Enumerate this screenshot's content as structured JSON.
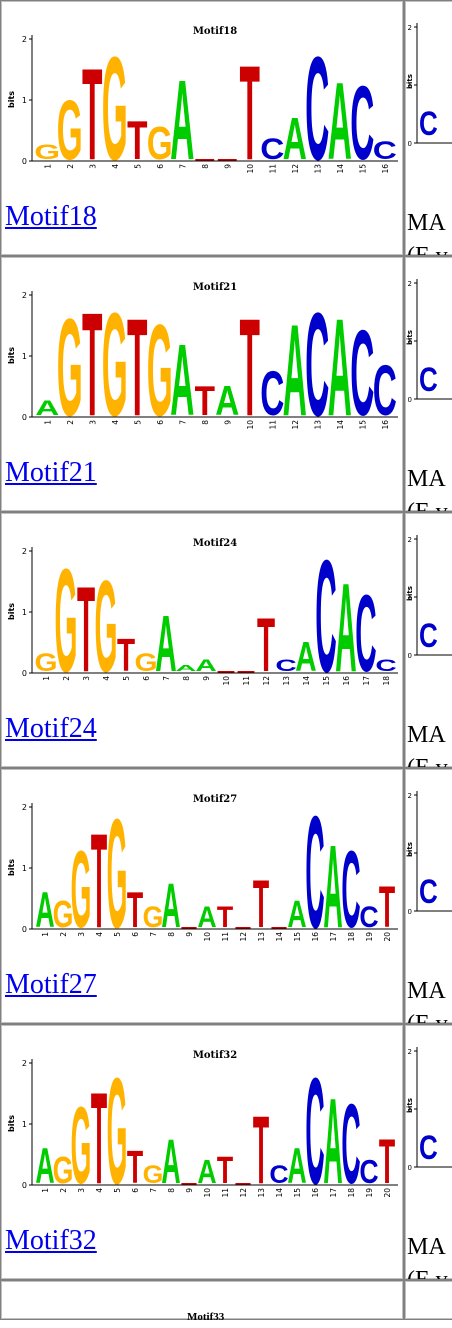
{
  "rows": [
    {
      "name": "Motif18",
      "link": "Motif18",
      "match_line1": "MA",
      "match_line2": "(E v",
      "positions": [
        "1",
        "2",
        "3",
        "4",
        "5",
        "6",
        "7",
        "8",
        "9",
        "10",
        "11",
        "12",
        "13",
        "14",
        "15",
        "16"
      ],
      "top": [
        "G",
        "G",
        "T",
        "G",
        "T",
        "G",
        "A",
        "_",
        "_",
        "T",
        "C",
        "A",
        "C",
        "A",
        "C",
        "C"
      ],
      "heights": [
        0.25,
        1.0,
        1.55,
        1.75,
        0.65,
        0.55,
        1.35,
        0.05,
        0.05,
        1.6,
        0.35,
        0.7,
        1.75,
        1.3,
        1.25,
        0.3
      ]
    },
    {
      "name": "Motif21",
      "link": "Motif21",
      "match_line1": "MA",
      "match_line2": "(E v",
      "positions": [
        "1",
        "2",
        "3",
        "4",
        "5",
        "6",
        "7",
        "8",
        "9",
        "10",
        "11",
        "12",
        "13",
        "14",
        "15",
        "16"
      ],
      "top": [
        "A",
        "G",
        "T",
        "G",
        "T",
        "G",
        "A",
        "T",
        "A",
        "T",
        "C",
        "A",
        "C",
        "A",
        "C",
        "C"
      ],
      "heights": [
        0.25,
        1.65,
        1.75,
        1.75,
        1.65,
        1.55,
        1.2,
        0.5,
        0.5,
        1.65,
        0.75,
        1.55,
        1.75,
        1.65,
        1.45,
        0.85
      ]
    },
    {
      "name": "Motif24",
      "link": "Motif24",
      "match_line1": "MA",
      "match_line2": "(E v",
      "positions": [
        "1",
        "2",
        "3",
        "4",
        "5",
        "6",
        "7",
        "8",
        "9",
        "10",
        "11",
        "12",
        "13",
        "14",
        "15",
        "16",
        "17",
        "18"
      ],
      "top": [
        "G",
        "G",
        "T",
        "G",
        "T",
        "G",
        "A",
        "A",
        "A",
        "_",
        "_",
        "T",
        "C",
        "A",
        "C",
        "A",
        "C",
        "C"
      ],
      "heights": [
        0.3,
        1.75,
        1.45,
        1.55,
        0.55,
        0.3,
        0.95,
        0.1,
        0.2,
        0.05,
        0.05,
        0.9,
        0.2,
        0.5,
        1.9,
        1.5,
        1.3,
        0.2
      ]
    },
    {
      "name": "Motif27",
      "link": "Motif27",
      "match_line1": "MA",
      "match_line2": "(E v",
      "positions": [
        "1",
        "2",
        "3",
        "4",
        "5",
        "6",
        "7",
        "8",
        "9",
        "10",
        "11",
        "12",
        "13",
        "14",
        "15",
        "16",
        "17",
        "18",
        "19",
        "20"
      ],
      "top": [
        "A",
        "G",
        "G",
        "T",
        "G",
        "T",
        "G",
        "A",
        "_",
        "A",
        "T",
        "_",
        "T",
        "_",
        "A",
        "C",
        "A",
        "C",
        "C",
        "T"
      ],
      "heights": [
        0.6,
        0.45,
        1.3,
        1.6,
        1.85,
        0.6,
        0.35,
        0.75,
        0.05,
        0.35,
        0.35,
        0.05,
        0.8,
        0.05,
        0.45,
        1.9,
        1.4,
        1.3,
        0.35,
        0.7
      ]
    },
    {
      "name": "Motif32",
      "link": "Motif32",
      "match_line1": "MA",
      "match_line2": "(E v",
      "positions": [
        "1",
        "2",
        "3",
        "4",
        "5",
        "6",
        "7",
        "8",
        "9",
        "10",
        "11",
        "12",
        "13",
        "14",
        "15",
        "16",
        "17",
        "18",
        "19",
        "20"
      ],
      "top": [
        "A",
        "G",
        "G",
        "T",
        "G",
        "T",
        "G",
        "A",
        "_",
        "A",
        "T",
        "_",
        "T",
        "C",
        "A",
        "C",
        "A",
        "C",
        "C",
        "T"
      ],
      "heights": [
        0.6,
        0.45,
        1.3,
        1.55,
        1.8,
        0.55,
        0.3,
        0.75,
        0.05,
        0.4,
        0.45,
        0.05,
        1.15,
        0.3,
        0.6,
        1.8,
        1.45,
        1.35,
        0.4,
        0.75
      ]
    }
  ],
  "axis": {
    "ylabel": "bits",
    "ticks": [
      "0",
      "1",
      "2"
    ]
  },
  "colors": {
    "A": "#00cc00",
    "C": "#0000cc",
    "G": "#ffb300",
    "T": "#cc0000",
    "link": "#0000ee"
  },
  "last_row_title": "Motif33"
}
